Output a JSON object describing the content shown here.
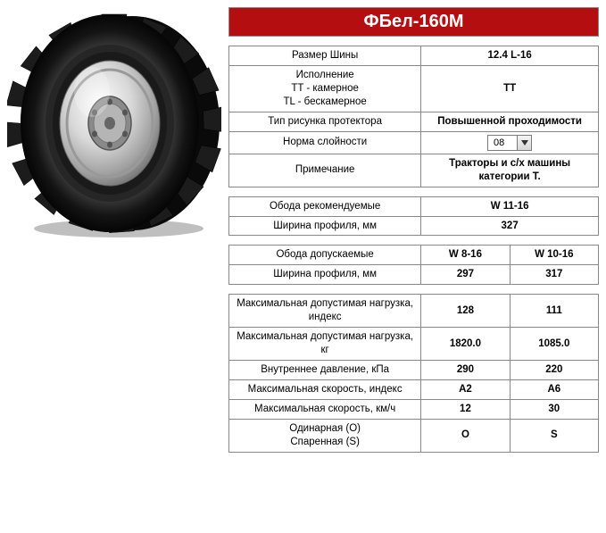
{
  "title": "ФБел-160М",
  "colors": {
    "title_bg": "#b50e10",
    "title_fg": "#ffffff",
    "border": "#888888"
  },
  "dropdown": {
    "value": "08"
  },
  "table1": {
    "rows": [
      {
        "label": "Размер Шины",
        "value": "12.4 L-16",
        "bold": true
      },
      {
        "label": "Исполнение\nTT - камерное\nTL - бескамерное",
        "value": "TT",
        "bold": true
      },
      {
        "label": "Тип рисунка протектора",
        "value": "Повышенной проходимости",
        "bold": true
      },
      {
        "label": "Норма слойности",
        "value": "__DROPDOWN__",
        "bold": false
      },
      {
        "label": "Примечание",
        "value": "Тракторы и с/х машины категории T.",
        "bold": true
      }
    ]
  },
  "table2": {
    "rows": [
      {
        "label": "Обода рекомендуемые",
        "value": "W 11-16",
        "bold": true
      },
      {
        "label": "Ширина профиля, мм",
        "value": "327",
        "bold": true
      }
    ]
  },
  "table3": {
    "rows": [
      {
        "label": "Обода допускаемые",
        "v1": "W 8-16",
        "v2": "W 10-16",
        "bold": true
      },
      {
        "label": "Ширина профиля, мм",
        "v1": "297",
        "v2": "317",
        "bold": true
      }
    ]
  },
  "table4": {
    "rows": [
      {
        "label": "Максимальная допустимая нагрузка, индекс",
        "v1": "128",
        "v2": "111",
        "bold": true
      },
      {
        "label": "Максимальная допустимая нагрузка, кг",
        "v1": "1820.0",
        "v2": "1085.0",
        "bold": true
      },
      {
        "label": "Внутреннее давление, кПа",
        "v1": "290",
        "v2": "220",
        "bold": true
      },
      {
        "label": "Максимальная скорость, индекс",
        "v1": "A2",
        "v2": "A6",
        "bold": true
      },
      {
        "label": "Максимальная скорость, км/ч",
        "v1": "12",
        "v2": "30",
        "bold": true
      },
      {
        "label": "Одинарная (О)\nСпаренная (S)",
        "v1": "O",
        "v2": "S",
        "bold": true
      }
    ]
  }
}
